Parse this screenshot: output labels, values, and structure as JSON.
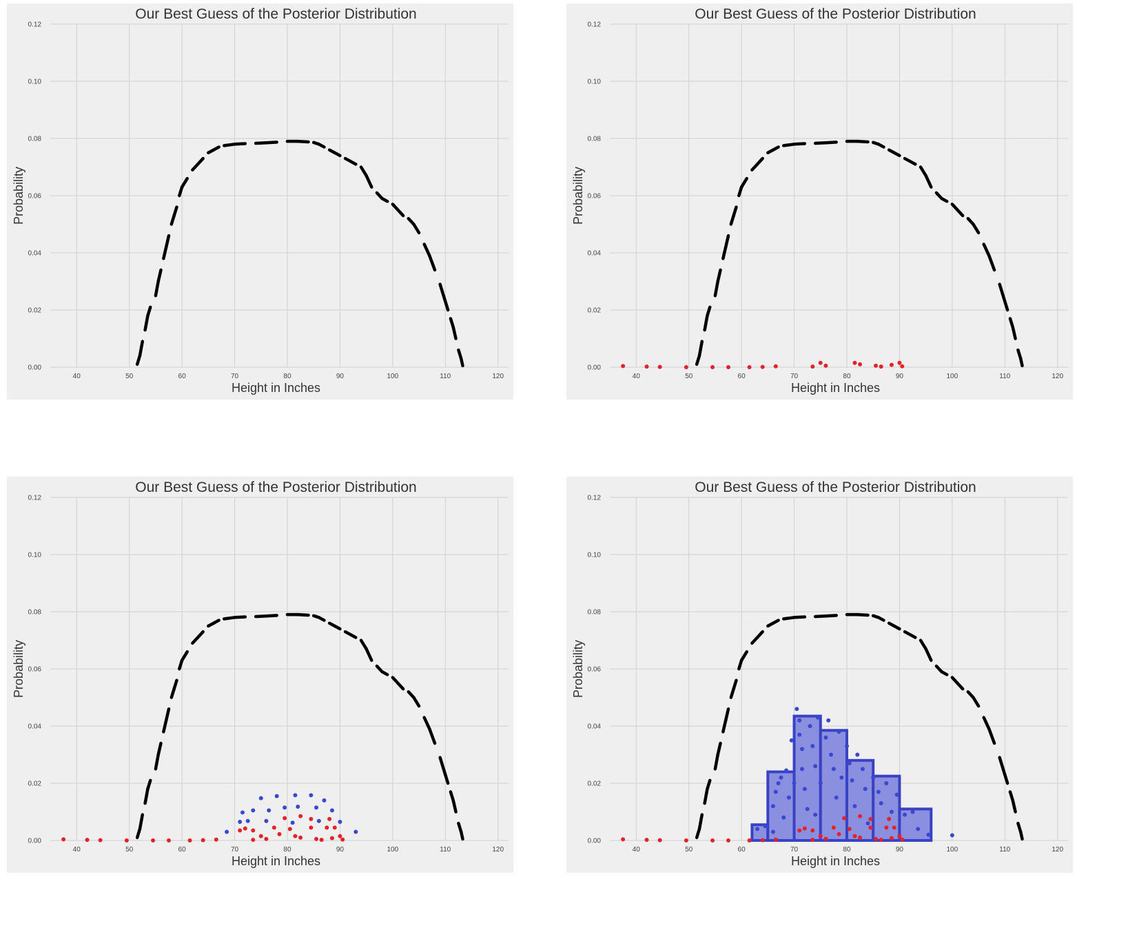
{
  "chart_data": [
    {
      "type": "scatter",
      "title": "Our Best Guess of the Posterior Distribution",
      "xlabel": "Height in Inches",
      "ylabel": "Probability",
      "xlim": [
        35,
        122
      ],
      "ylim": [
        0,
        0.12
      ],
      "xticks": [
        40,
        50,
        60,
        70,
        80,
        90,
        100,
        110,
        120
      ],
      "yticks": [
        0.0,
        0.02,
        0.04,
        0.06,
        0.08,
        0.1,
        0.12
      ],
      "grid": true,
      "show_red": false,
      "show_blue": false,
      "show_hist": false
    },
    {
      "type": "scatter",
      "title": "Our Best Guess of the Posterior Distribution",
      "xlabel": "Height in Inches",
      "ylabel": "Probability",
      "xlim": [
        35,
        122
      ],
      "ylim": [
        0,
        0.12
      ],
      "xticks": [
        40,
        50,
        60,
        70,
        80,
        90,
        100,
        110,
        120
      ],
      "yticks": [
        0.0,
        0.02,
        0.04,
        0.06,
        0.08,
        0.1,
        0.12
      ],
      "grid": true,
      "show_red": true,
      "show_blue": false,
      "show_hist": false
    },
    {
      "type": "scatter",
      "title": "Our Best Guess of the Posterior Distribution",
      "xlabel": "Height in Inches",
      "ylabel": "Probability",
      "xlim": [
        35,
        122
      ],
      "ylim": [
        0,
        0.12
      ],
      "xticks": [
        40,
        50,
        60,
        70,
        80,
        90,
        100,
        110,
        120
      ],
      "yticks": [
        0.0,
        0.02,
        0.04,
        0.06,
        0.08,
        0.1,
        0.12
      ],
      "grid": true,
      "show_red": true,
      "show_blue": true,
      "show_hist": false
    },
    {
      "type": "bar",
      "title": "Our Best Guess of the Posterior Distribution",
      "xlabel": "Height in Inches",
      "ylabel": "Probability",
      "xlim": [
        35,
        122
      ],
      "ylim": [
        0,
        0.12
      ],
      "xticks": [
        40,
        50,
        60,
        70,
        80,
        90,
        100,
        110,
        120
      ],
      "yticks": [
        0.0,
        0.02,
        0.04,
        0.06,
        0.08,
        0.1,
        0.12
      ],
      "grid": true,
      "show_red": true,
      "show_blue": true,
      "show_hist": true
    }
  ],
  "curve": [
    [
      51.5,
      0.001
    ],
    [
      52,
      0.004
    ],
    [
      52.5,
      0.009
    ],
    [
      53,
      0.013
    ],
    [
      53.5,
      0.018
    ],
    [
      54,
      0.021
    ],
    [
      55,
      0.025
    ],
    [
      55.5,
      0.03
    ],
    [
      56,
      0.034
    ],
    [
      56.5,
      0.038
    ],
    [
      57,
      0.042
    ],
    [
      57.5,
      0.046
    ],
    [
      58,
      0.05
    ],
    [
      58.5,
      0.053
    ],
    [
      59,
      0.056
    ],
    [
      59.5,
      0.06
    ],
    [
      60,
      0.063
    ],
    [
      61,
      0.066
    ],
    [
      62,
      0.069
    ],
    [
      63,
      0.071
    ],
    [
      64,
      0.073
    ],
    [
      65,
      0.075
    ],
    [
      66,
      0.076
    ],
    [
      67,
      0.077
    ],
    [
      68,
      0.0775
    ],
    [
      70,
      0.078
    ],
    [
      72,
      0.0782
    ],
    [
      74,
      0.0783
    ],
    [
      76,
      0.0785
    ],
    [
      78,
      0.0787
    ],
    [
      80,
      0.079
    ],
    [
      82,
      0.079
    ],
    [
      84,
      0.0788
    ],
    [
      85,
      0.0786
    ],
    [
      86,
      0.078
    ],
    [
      87,
      0.077
    ],
    [
      88,
      0.076
    ],
    [
      89,
      0.075
    ],
    [
      90,
      0.074
    ],
    [
      91,
      0.073
    ],
    [
      92,
      0.072
    ],
    [
      93,
      0.071
    ],
    [
      94,
      0.07
    ],
    [
      95,
      0.067
    ],
    [
      96,
      0.063
    ],
    [
      97,
      0.061
    ],
    [
      98,
      0.059
    ],
    [
      99,
      0.058
    ],
    [
      100,
      0.057
    ],
    [
      101,
      0.055
    ],
    [
      102,
      0.053
    ],
    [
      103,
      0.052
    ],
    [
      104,
      0.05
    ],
    [
      105,
      0.047
    ],
    [
      106,
      0.043
    ],
    [
      107,
      0.039
    ],
    [
      108,
      0.034
    ],
    [
      109,
      0.029
    ],
    [
      110,
      0.023
    ],
    [
      110.5,
      0.02
    ],
    [
      111,
      0.017
    ],
    [
      111.5,
      0.014
    ],
    [
      112,
      0.01
    ],
    [
      112.5,
      0.006
    ],
    [
      113,
      0.003
    ],
    [
      113.3,
      0.0005
    ]
  ],
  "red_points": [
    [
      37.5,
      0.0004
    ],
    [
      42,
      0.0002
    ],
    [
      44.5,
      0.0001
    ],
    [
      49.5,
      0
    ],
    [
      54.5,
      0
    ],
    [
      57.5,
      0
    ],
    [
      61.5,
      0
    ],
    [
      64,
      0.0001
    ],
    [
      66.5,
      0.0003
    ],
    [
      71,
      0.0035
    ],
    [
      73.5,
      0.0002
    ],
    [
      73.5,
      0.0035
    ],
    [
      76,
      0.0005
    ],
    [
      77.5,
      0.0045
    ],
    [
      79.5,
      0.0078
    ],
    [
      80.5,
      0.004
    ],
    [
      82.5,
      0.0085
    ],
    [
      82.5,
      0.001
    ],
    [
      84.5,
      0.0075
    ],
    [
      84.5,
      0.0045
    ],
    [
      86.5,
      0.0002
    ],
    [
      87.5,
      0.0045
    ],
    [
      88,
      0.0075
    ],
    [
      88.5,
      0.0008
    ],
    [
      89,
      0.0045
    ],
    [
      90.5,
      0.0003
    ],
    [
      72,
      0.0042
    ],
    [
      75,
      0.0015
    ],
    [
      78.5,
      0.0022
    ],
    [
      81.5,
      0.0015
    ],
    [
      85.5,
      0.0005
    ],
    [
      90,
      0.0015
    ]
  ],
  "blue_points": [
    [
      68.5,
      0.003
    ],
    [
      71,
      0.0065
    ],
    [
      71.5,
      0.0098
    ],
    [
      73.5,
      0.0105
    ],
    [
      75,
      0.0148
    ],
    [
      76.5,
      0.0105
    ],
    [
      78,
      0.0155
    ],
    [
      79.5,
      0.0115
    ],
    [
      81.5,
      0.0158
    ],
    [
      82,
      0.0118
    ],
    [
      84.5,
      0.0158
    ],
    [
      85.5,
      0.0115
    ],
    [
      87,
      0.014
    ],
    [
      88.5,
      0.0105
    ],
    [
      90,
      0.0065
    ],
    [
      93,
      0.003
    ],
    [
      72.5,
      0.0068
    ],
    [
      76,
      0.0068
    ],
    [
      81,
      0.0062
    ],
    [
      86,
      0.0068
    ]
  ],
  "hist_bins": [
    [
      62,
      65,
      0.0055
    ],
    [
      65,
      70,
      0.024
    ],
    [
      70,
      75,
      0.0435
    ],
    [
      75,
      80,
      0.0385
    ],
    [
      80,
      85,
      0.028
    ],
    [
      85,
      90,
      0.0225
    ],
    [
      90,
      96,
      0.011
    ]
  ],
  "hist_blue_points": [
    [
      63,
      0.004
    ],
    [
      64.5,
      0.005
    ],
    [
      66,
      0.003
    ],
    [
      66,
      0.012
    ],
    [
      66.5,
      0.017
    ],
    [
      67,
      0.02
    ],
    [
      67.5,
      0.022
    ],
    [
      68,
      0.008
    ],
    [
      68.5,
      0.0245
    ],
    [
      69,
      0.015
    ],
    [
      69.5,
      0.035
    ],
    [
      70,
      0.02
    ],
    [
      70.5,
      0.046
    ],
    [
      71,
      0.042
    ],
    [
      71,
      0.037
    ],
    [
      71.5,
      0.032
    ],
    [
      71.5,
      0.025
    ],
    [
      72,
      0.018
    ],
    [
      72.5,
      0.011
    ],
    [
      73,
      0.04
    ],
    [
      73.5,
      0.033
    ],
    [
      74,
      0.026
    ],
    [
      74,
      0.009
    ],
    [
      74.5,
      0.043
    ],
    [
      75,
      0.02
    ],
    [
      76,
      0.036
    ],
    [
      76.5,
      0.042
    ],
    [
      77,
      0.03
    ],
    [
      77.5,
      0.025
    ],
    [
      78,
      0.015
    ],
    [
      78.5,
      0.038
    ],
    [
      79,
      0.022
    ],
    [
      80,
      0.033
    ],
    [
      80.5,
      0.027
    ],
    [
      81,
      0.021
    ],
    [
      81.5,
      0.012
    ],
    [
      82,
      0.03
    ],
    [
      83,
      0.025
    ],
    [
      83.5,
      0.018
    ],
    [
      84,
      0.006
    ],
    [
      85,
      0.022
    ],
    [
      86,
      0.017
    ],
    [
      86.5,
      0.013
    ],
    [
      87.5,
      0.02
    ],
    [
      88.5,
      0.01
    ],
    [
      89.5,
      0.016
    ],
    [
      91,
      0.009
    ],
    [
      92.5,
      0.01
    ],
    [
      93.5,
      0.004
    ],
    [
      95.5,
      0.002
    ],
    [
      100,
      0.0018
    ]
  ]
}
